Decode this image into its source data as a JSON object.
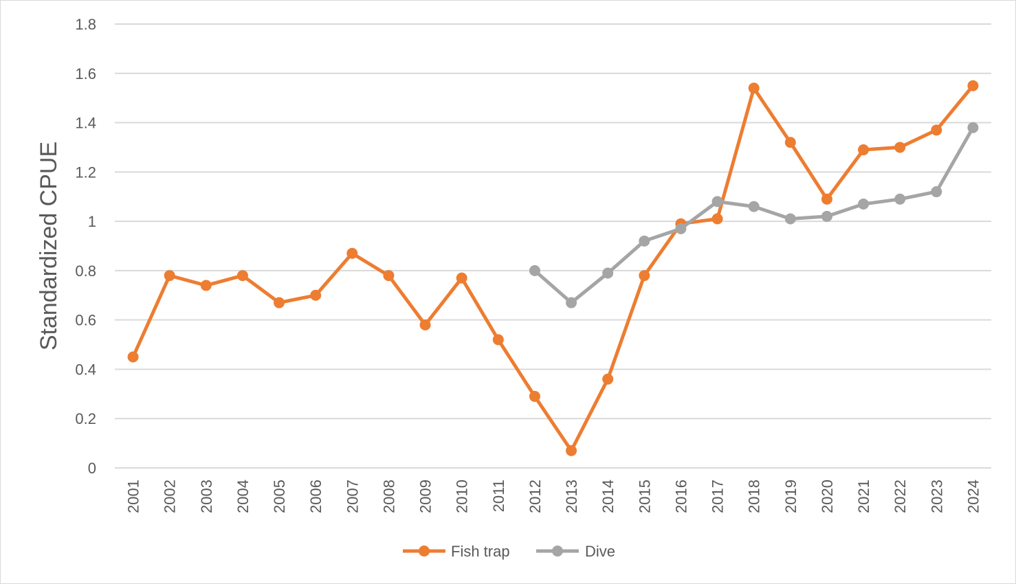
{
  "chart_data": {
    "type": "line",
    "title": "",
    "xlabel": "",
    "ylabel": "Standardized CPUE",
    "ylim": [
      0,
      1.8
    ],
    "yticks": [
      0,
      0.2,
      0.4,
      0.6,
      0.8,
      1,
      1.2,
      1.4,
      1.6,
      1.8
    ],
    "ytick_labels": [
      "0",
      "0.2",
      "0.4",
      "0.6",
      "0.8",
      "1",
      "1.2",
      "1.4",
      "1.6",
      "1.8"
    ],
    "grid": true,
    "legend_position": "bottom",
    "categories": [
      "2001",
      "2002",
      "2003",
      "2004",
      "2005",
      "2006",
      "2007",
      "2008",
      "2009",
      "2010",
      "2011",
      "2012",
      "2013",
      "2014",
      "2015",
      "2016",
      "2017",
      "2018",
      "2019",
      "2020",
      "2021",
      "2022",
      "2023",
      "2024"
    ],
    "series": [
      {
        "name": "Fish trap",
        "color": "#ED7D31",
        "values": [
          0.45,
          0.78,
          0.74,
          0.78,
          0.67,
          0.7,
          0.87,
          0.78,
          0.58,
          0.77,
          0.52,
          0.29,
          0.07,
          0.36,
          0.78,
          0.99,
          1.01,
          1.54,
          1.32,
          1.09,
          1.29,
          1.3,
          1.37,
          1.55
        ]
      },
      {
        "name": "Dive",
        "color": "#A5A5A5",
        "values": [
          null,
          null,
          null,
          null,
          null,
          null,
          null,
          null,
          null,
          null,
          null,
          0.8,
          0.67,
          0.79,
          0.92,
          0.97,
          1.08,
          1.06,
          1.01,
          1.02,
          1.07,
          1.09,
          1.12,
          1.38
        ]
      }
    ]
  }
}
